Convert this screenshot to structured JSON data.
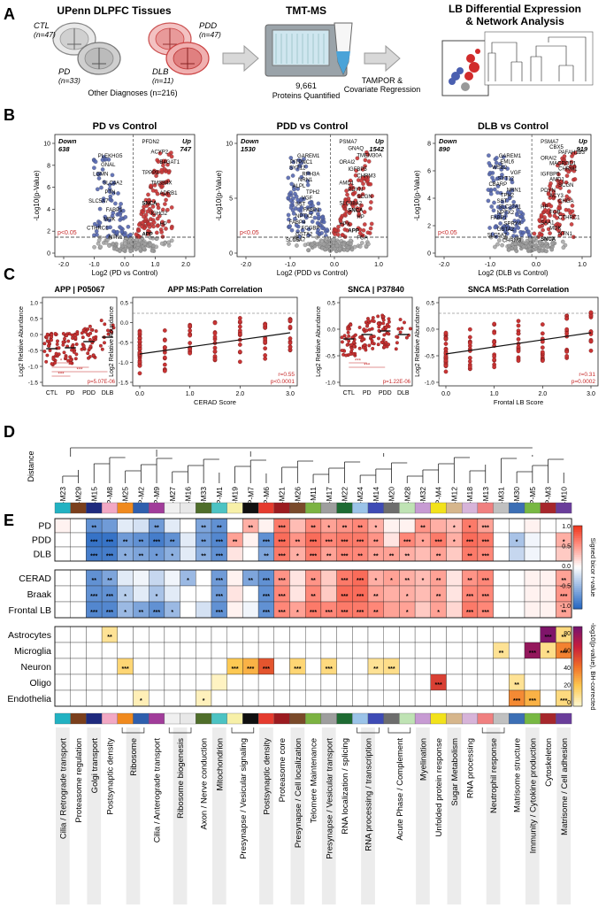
{
  "panel_A": {
    "label": "A",
    "title": "UPenn DLPFC Tissues",
    "cohorts": [
      {
        "name": "CTL",
        "n": "(n=47)"
      },
      {
        "name": "PDD",
        "n": "(n=47)"
      },
      {
        "name": "PD",
        "n": "(n=33)"
      },
      {
        "name": "DLB",
        "n": "(n=11)"
      }
    ],
    "other": "Other Diagnoses (n=216)",
    "tmt_title": "TMT-MS",
    "proteins_count": "9,661",
    "proteins_label": "Proteins Quantified",
    "regression": "TAMPOR &",
    "regression2": "Covariate Regression",
    "lb_title": "LB Differential Expression",
    "lb_title2": "& Network Analysis"
  },
  "panel_B": {
    "label": "B",
    "ylabel": "-Log10(p-Value)",
    "sig": "p<0.05",
    "plots": [
      {
        "title": "PD vs Control",
        "down_label": "Down",
        "down": "638",
        "up_label": "Up",
        "up": "747",
        "xlabel": "Log2 (PD vs Control)",
        "xticks": [
          "-2.0",
          "-1.0",
          "0.0",
          "1.0",
          "2.0"
        ],
        "yticks": [
          "0",
          "2",
          "4",
          "6",
          "8",
          "10"
        ],
        "genes_up": [
          "PFDN2",
          "ACYP2",
          "B4GAT1",
          "TPPP3",
          "TMSB4X",
          "ADRB1",
          "SNCA",
          "IGHG2",
          "HP",
          "APP"
        ],
        "genes_down": [
          "PLEKHG5",
          "GNAL",
          "LGMN",
          "SLC4A2",
          "PTN",
          "SLC5A7",
          "FABP1",
          "MDK",
          "CTHRC1",
          "NTN1"
        ]
      },
      {
        "title": "PDD vs Control",
        "down_label": "Down",
        "down": "1530",
        "up_label": "Up",
        "up": "1542",
        "xlabel": "Log2 (PDD vs Control)",
        "xticks": [
          "-2.0",
          "-1.0",
          "0.0",
          "1.0"
        ],
        "yticks": [
          "0",
          "5",
          "10"
        ],
        "genes_up": [
          "PSMA7",
          "GNAQ",
          "TMEM30A",
          "ORAI2",
          "IGFBP5",
          "CHRM3",
          "AMD1",
          "PDYN",
          "SCGN",
          "SLC38A2",
          "SNCA",
          "HP",
          "HPX",
          "APP",
          "FGA"
        ],
        "genes_down": [
          "GAREM1",
          "PITPNC1",
          "SYT12",
          "RPH3A",
          "NRN1",
          "ALPL",
          "TPH2",
          "VGF",
          "SST",
          "FABP1",
          "NPTX2",
          "FABP4",
          "FCGBP",
          "GSTA2",
          "SLC5A7"
        ]
      },
      {
        "title": "DLB vs Control",
        "down_label": "Down",
        "down": "890",
        "up_label": "Up",
        "up": "919",
        "xlabel": "Log2 (DLB vs Control)",
        "xticks": [
          "-2.0",
          "-1.0",
          "0.0",
          "1.0"
        ],
        "yticks": [
          "0",
          "2",
          "4",
          "6",
          "8"
        ],
        "genes_up": [
          "PSMA7",
          "CBX5",
          "PAFAH1B3",
          "ORAI2",
          "MACROD1",
          "CHRM1",
          "IGFBP5",
          "AMD1",
          "SCGN",
          "PDYN",
          "ACY3",
          "CHGA",
          "HP",
          "FGB",
          "CTHRC1",
          "SAA1",
          "MDK",
          "NTN1",
          "SNCA"
        ],
        "genes_down": [
          "GAREM1",
          "EML6",
          "WSB2",
          "VGF",
          "SYT12",
          "CBARP",
          "NRN1",
          "TPH2",
          "SST",
          "SLC22A1",
          "NPTX2",
          "FABP1",
          "SPRY4",
          "GSTA2",
          "SLC5A7",
          "CHRM3"
        ]
      }
    ]
  },
  "panel_C": {
    "label": "C",
    "ylabel": "Log2 Relative Abundance",
    "plots": [
      {
        "title": "APP | P05067",
        "groups": [
          "CTL",
          "PD",
          "PDD",
          "DLB"
        ],
        "yticks": [
          "1.0",
          "0.5",
          "0.0",
          "-0.5",
          "-1.0",
          "-1.5"
        ],
        "pval": "p=5.07E-06",
        "stars": [
          "*",
          "**",
          "***",
          "***"
        ]
      },
      {
        "title": "APP MS:Path Correlation",
        "xlabel": "CERAD Score",
        "xticks": [
          "0.0",
          "1.0",
          "2.0",
          "3.0"
        ],
        "yticks": [
          "0.5",
          "0.0",
          "-0.5",
          "-1.0",
          "-1.5"
        ],
        "r": "r=0.55",
        "p": "p<0.0001"
      },
      {
        "title": "SNCA | P37840",
        "groups": [
          "CTL",
          "PD",
          "PDD",
          "DLB"
        ],
        "yticks": [
          "0.5",
          "0.0",
          "-0.5",
          "-1.0"
        ],
        "pval": "p=1.22E-06",
        "stars": [
          "***",
          "***"
        ]
      },
      {
        "title": "SNCA MS:Path Correlation",
        "xlabel": "Frontal LB Score",
        "xticks": [
          "0.0",
          "1.0",
          "2.0",
          "3.0"
        ],
        "yticks": [
          "0.5",
          "0.0",
          "-0.5",
          "-1.0"
        ],
        "r": "r=0.31",
        "p": "p=0.0002"
      }
    ]
  },
  "panel_D": {
    "label": "D",
    "ylabel": "Distance"
  },
  "panel_E": {
    "label": "E",
    "modules": [
      "P-M23",
      "P-M29",
      "P-M15",
      "P-M8",
      "P-M25",
      "P-M2",
      "P-M9",
      "P-M27",
      "P-M16",
      "P-M33",
      "P-M1",
      "P-M19",
      "P-M7",
      "P-M6",
      "P-M21",
      "P-M26",
      "P-M11",
      "P-M17",
      "P-M22",
      "P-M24",
      "P-M14",
      "P-M20",
      "P-M28",
      "P-M32",
      "P-M4",
      "P-M12",
      "P-M18",
      "P-M13",
      "P-M31",
      "P-M30",
      "P-M5",
      "P-M3",
      "P-M10"
    ],
    "module_colors": [
      "#22b2c2",
      "#7b3f1c",
      "#1f2a7e",
      "#f2a8c4",
      "#f08a1e",
      "#2f5fad",
      "#a13c9a",
      "#f0f0f0",
      "#e8e8e8",
      "#4f6e2a",
      "#4cc3c3",
      "#f7f0a8",
      "#101010",
      "#e53b2e",
      "#9b1b20",
      "#7a4a2a",
      "#7cb342",
      "#9e9e9e",
      "#1e6b33",
      "#9bc3e8",
      "#3e4bb5",
      "#6d6d6d",
      "#bfe3b4",
      "#c79bd3",
      "#f2e21a",
      "#d6b68c",
      "#d7b4d9",
      "#f08080",
      "#c0c0c0",
      "#3c6fb5",
      "#78b843",
      "#a6272c",
      "#6a3d9a"
    ],
    "rows_dx": [
      "PD",
      "PDD",
      "DLB"
    ],
    "rows_path": [
      "CERAD",
      "Braak",
      "Frontal LB"
    ],
    "rows_cell": [
      "Astrocytes",
      "Microglia",
      "Neuron",
      "Oligo",
      "Endothelia"
    ],
    "colorbar1": {
      "label": "Signed bicor r-value",
      "ticks": [
        "1.0",
        "0.5",
        "0.0",
        "-0.5",
        "-1.0"
      ]
    },
    "colorbar2": {
      "label": "-log10(p-value), BH-corrected",
      "ticks": [
        "80",
        "60",
        "40",
        "20",
        "0"
      ]
    },
    "ontology": [
      "Cilia / Retrograde transport",
      "Proteasome regulation",
      "Golgi transport",
      "Postsynaptic density",
      "Ribosome",
      "Cilia / Anterograde transport",
      "Ribosome biogenesis",
      "Axon / Nerve conduction",
      "Mitochondrion",
      "Presynapse / Vesicular signaling",
      "Postsynaptic density",
      "Proteasome core",
      "Presynapse / Cell localization",
      "Telomere Maintenance",
      "Presynapse / Vesicular transport",
      "RNA localization / splicing",
      "RNA processing / transcription",
      "Acute Phase / Complement",
      "Myelination",
      "Unfolded protein response",
      "Sugar Metabolism",
      "RNA processing",
      "Neutrophil response",
      "Matrisome structure",
      "Immunity / Cytokine production",
      "Cytoskeleton",
      "Matrisome / Cell adhesion"
    ],
    "heat_dx": [
      [
        0.05,
        0,
        -0.55,
        -0.5,
        -0.1,
        -0.15,
        -0.5,
        -0.1,
        0,
        -0.45,
        -0.55,
        0,
        0.3,
        0.05,
        0.5,
        0.25,
        0.45,
        0.35,
        0.4,
        0.45,
        0.3,
        0.05,
        0.05,
        0.4,
        0.3,
        0.25,
        0.5,
        0.35,
        0,
        0,
        0.05,
        0,
        0
      ],
      [
        0,
        0,
        -0.7,
        -0.7,
        -0.5,
        -0.55,
        -0.65,
        -0.55,
        -0.1,
        -0.5,
        -0.6,
        0.35,
        0.05,
        -0.55,
        0.55,
        0.4,
        0.55,
        0.45,
        0.5,
        0.5,
        0.4,
        0.1,
        0.45,
        0.35,
        0.5,
        0.3,
        0.55,
        0.5,
        0,
        -0.3,
        -0.05,
        0,
        0.3
      ],
      [
        0,
        0,
        -0.65,
        -0.65,
        -0.4,
        -0.45,
        -0.5,
        -0.4,
        -0.1,
        -0.4,
        -0.55,
        0.1,
        0,
        -0.45,
        0.5,
        0.3,
        0.5,
        0.35,
        0.45,
        0.45,
        0.35,
        0.35,
        0.3,
        0.25,
        0.35,
        0.2,
        0.5,
        0.45,
        0,
        -0.2,
        -0.05,
        0,
        0.2
      ]
    ],
    "stars_dx": [
      [
        "",
        "",
        "**",
        "",
        "",
        "",
        "**",
        "",
        "",
        "**",
        "**",
        "",
        "**",
        "",
        "***",
        "",
        "**",
        "*",
        "**",
        "**",
        "*",
        "",
        "",
        "**",
        "",
        "*",
        "*",
        "***",
        "",
        "",
        "",
        "",
        ""
      ],
      [
        "",
        "",
        "***",
        "***",
        "**",
        "**",
        "***",
        "**",
        "",
        "**",
        "***",
        "**",
        "",
        "***",
        "***",
        "**",
        "***",
        "***",
        "***",
        "***",
        "**",
        "",
        "***",
        "*",
        "***",
        "*",
        "***",
        "***",
        "",
        "*",
        "",
        "",
        "*"
      ],
      [
        "",
        "",
        "***",
        "***",
        "*",
        "**",
        "*",
        "*",
        "",
        "**",
        "***",
        "",
        "",
        "**",
        "***",
        "*",
        "***",
        "**",
        "***",
        "**",
        "**",
        "**",
        "**",
        "",
        "**",
        "",
        "**",
        "***",
        "",
        "",
        "",
        "",
        ""
      ]
    ],
    "heat_path": [
      [
        0,
        0,
        -0.55,
        -0.45,
        -0.1,
        -0.05,
        -0.2,
        -0.05,
        -0.35,
        0,
        -0.5,
        0.05,
        -0.45,
        -0.55,
        0.4,
        0.1,
        0.4,
        0.2,
        0.5,
        0.55,
        0.3,
        0.35,
        0.3,
        0.25,
        0.35,
        0.1,
        0.4,
        0.45,
        0,
        0,
        0.05,
        0.05,
        0.35
      ],
      [
        0,
        0,
        -0.55,
        -0.55,
        -0.25,
        -0.1,
        -0.3,
        -0.1,
        0,
        0,
        -0.5,
        0.1,
        0,
        -0.55,
        0.45,
        0.1,
        0.45,
        0.2,
        0.55,
        0.55,
        0.35,
        0.3,
        0.3,
        0.25,
        0.35,
        0.1,
        0.45,
        0.45,
        0,
        0,
        0.05,
        0.05,
        0.4
      ],
      [
        0,
        0,
        -0.6,
        -0.6,
        -0.35,
        -0.45,
        -0.55,
        -0.35,
        0,
        -0.15,
        -0.55,
        0.05,
        -0.05,
        -0.55,
        0.45,
        0.35,
        0.5,
        0.45,
        0.5,
        0.5,
        0.45,
        0.35,
        0.35,
        0.2,
        0.35,
        0.15,
        0.5,
        0.45,
        0,
        0,
        0.05,
        0.05,
        0.35
      ]
    ],
    "stars_path": [
      [
        "",
        "",
        "**",
        "**",
        "",
        "",
        "",
        "",
        "*",
        "",
        "***",
        "",
        "**",
        "***",
        "***",
        "",
        "**",
        "",
        "***",
        "***",
        "*",
        "*",
        "**",
        "*",
        "**",
        "",
        "**",
        "***",
        "",
        "",
        "",
        "",
        "**"
      ],
      [
        "",
        "",
        "***",
        "***",
        "*",
        "",
        "*",
        "",
        "",
        "",
        "***",
        "",
        "",
        "***",
        "***",
        "",
        "**",
        "",
        "***",
        "***",
        "**",
        "",
        "*",
        "",
        "**",
        "",
        "***",
        "***",
        "",
        "",
        "",
        "",
        "***"
      ],
      [
        "",
        "",
        "***",
        "***",
        "*",
        "**",
        "***",
        "*",
        "",
        "",
        "***",
        "",
        "",
        "***",
        "***",
        "*",
        "***",
        "***",
        "***",
        "***",
        "**",
        "",
        "*",
        "",
        "*",
        "",
        "***",
        "***",
        "",
        "",
        "",
        "",
        "**"
      ]
    ],
    "heat_cell": [
      [
        0,
        0,
        0,
        10,
        0,
        0,
        0,
        0,
        0,
        0,
        0,
        0,
        0,
        0,
        0,
        0,
        0,
        0,
        0,
        0,
        0,
        0,
        0,
        0,
        0,
        0,
        0,
        0,
        0,
        0,
        0,
        88,
        14
      ],
      [
        0,
        0,
        0,
        0,
        0,
        0,
        0,
        0,
        0,
        0,
        0,
        0,
        0,
        0,
        0,
        0,
        0,
        0,
        0,
        0,
        0,
        0,
        0,
        0,
        0,
        0,
        0,
        0,
        10,
        0,
        82,
        12,
        40
      ],
      [
        0,
        0,
        0,
        0,
        16,
        0,
        0,
        0,
        0,
        0,
        0,
        22,
        28,
        52,
        0,
        16,
        0,
        14,
        0,
        0,
        10,
        12,
        0,
        0,
        0,
        0,
        0,
        0,
        0,
        0,
        0,
        0,
        0
      ],
      [
        0,
        0,
        0,
        0,
        0,
        0,
        0,
        0,
        0,
        0,
        2,
        0,
        0,
        0,
        0,
        0,
        0,
        0,
        0,
        0,
        0,
        0,
        0,
        0,
        58,
        0,
        0,
        0,
        0,
        10,
        0,
        0,
        0
      ],
      [
        0,
        0,
        0,
        0,
        0,
        4,
        0,
        0,
        0,
        3,
        0,
        0,
        0,
        0,
        0,
        0,
        0,
        0,
        0,
        0,
        0,
        0,
        0,
        0,
        0,
        0,
        0,
        0,
        0,
        38,
        28,
        0,
        14
      ]
    ],
    "stars_cell": [
      [
        "",
        "",
        "",
        "**",
        "",
        "",
        "",
        "",
        "",
        "",
        "",
        "",
        "",
        "",
        "",
        "",
        "",
        "",
        "",
        "",
        "",
        "",
        "",
        "",
        "",
        "",
        "",
        "",
        "",
        "",
        "",
        "***",
        "**"
      ],
      [
        "",
        "",
        "",
        "",
        "",
        "",
        "",
        "",
        "",
        "",
        "",
        "",
        "",
        "",
        "",
        "",
        "",
        "",
        "",
        "",
        "",
        "",
        "",
        "",
        "",
        "",
        "",
        "",
        "**",
        "",
        "***",
        "*",
        "***"
      ],
      [
        "",
        "",
        "",
        "",
        "***",
        "",
        "",
        "",
        "",
        "",
        "",
        "***",
        "***",
        "***",
        "",
        "***",
        "",
        "***",
        "",
        "",
        "**",
        "***",
        "",
        "",
        "",
        "",
        "",
        "",
        "",
        "",
        "",
        "",
        ""
      ],
      [
        "",
        "",
        "",
        "",
        "",
        "",
        "",
        "",
        "",
        "",
        "",
        "",
        "",
        "",
        "",
        "",
        "",
        "",
        "",
        "",
        "",
        "",
        "",
        "",
        "***",
        "",
        "",
        "",
        "",
        "**",
        "",
        "",
        ""
      ],
      [
        "",
        "",
        "",
        "",
        "",
        "*",
        "",
        "",
        "",
        "*",
        "",
        "",
        "",
        "",
        "",
        "",
        "",
        "",
        "",
        "",
        "",
        "",
        "",
        "",
        "",
        "",
        "",
        "",
        "",
        "***",
        "***",
        "",
        "***"
      ]
    ]
  }
}
